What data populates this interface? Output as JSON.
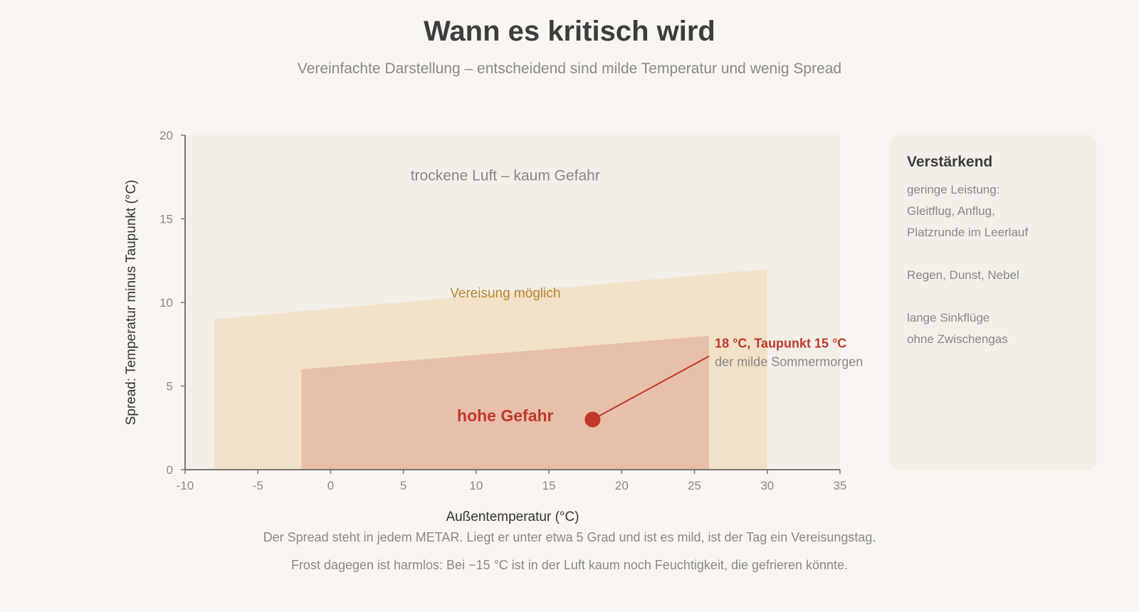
{
  "header": {
    "title": "Wann es kritisch wird",
    "subtitle": "Vereinfachte Darstellung – entscheidend sind milde Temperatur und wenig Spread"
  },
  "chart_data": {
    "type": "area",
    "xlabel": "Außentemperatur (°C)",
    "ylabel": "Spread: Temperatur minus Taupunkt (°C)",
    "xlim": [
      -10,
      35
    ],
    "ylim": [
      0,
      20
    ],
    "xticks": [
      -10,
      -5,
      0,
      5,
      10,
      15,
      20,
      25,
      30,
      35
    ],
    "yticks": [
      0,
      5,
      10,
      15,
      20
    ],
    "regions": [
      {
        "label": "trockene Luft – kaum Gefahr",
        "label_at": [
          12,
          17.3
        ],
        "color": "#f2efe9",
        "polygon": [
          [
            -10,
            0
          ],
          [
            35,
            0
          ],
          [
            35,
            20
          ],
          [
            -10,
            20
          ]
        ]
      },
      {
        "label": "Vereisung möglich",
        "label_at": [
          12,
          10.3
        ],
        "color": "#f1e1c8",
        "polygon": [
          [
            -8,
            0
          ],
          [
            30,
            0
          ],
          [
            30,
            12
          ],
          [
            -8,
            9
          ]
        ]
      },
      {
        "label": "hohe Gefahr",
        "label_at": [
          12,
          2.9
        ],
        "color": "#e8bfaa",
        "polygon": [
          [
            -2,
            0
          ],
          [
            26,
            0
          ],
          [
            26,
            8
          ],
          [
            -2,
            6
          ]
        ]
      }
    ],
    "point": {
      "x": 18,
      "y": 3,
      "label": "18 °C, Taupunkt 15 °C",
      "sublabel": "der milde Sommermorgen",
      "label_at": [
        26.4,
        7.3
      ],
      "color": "#c0392b"
    },
    "colors": {
      "axis": "#777777",
      "tick_text": "#888888",
      "dry_text": "#888888",
      "possible_text": "#b8862e",
      "danger_text": "#c0392b"
    }
  },
  "side_panel": {
    "title": "Verstärkend",
    "lines": [
      "geringe Leistung:",
      "Gleitflug, Anflug,",
      "Platzrunde im Leerlauf",
      "",
      "Regen, Dunst, Nebel",
      "",
      "lange Sinkflüge",
      "ohne Zwischengas"
    ]
  },
  "footer": {
    "line1": "Der Spread steht in jedem METAR. Liegt er unter etwa 5 Grad und ist es mild, ist der Tag ein Vereisungstag.",
    "line2": "Frost dagegen ist harmlos: Bei −15 °C ist in der Luft kaum noch Feuchtigkeit, die gefrieren könnte."
  }
}
